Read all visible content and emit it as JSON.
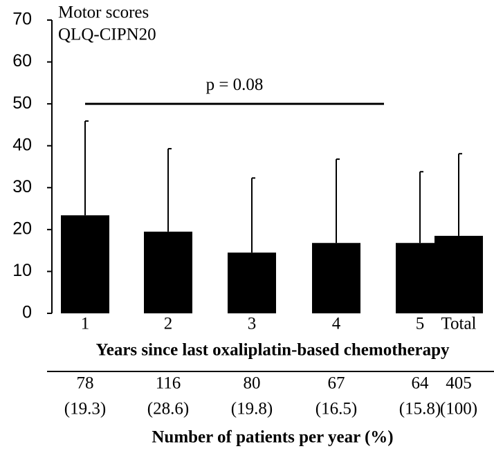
{
  "chart_data": {
    "type": "bar",
    "title": "Motor scores",
    "subtitle": "QLQ-CIPN20",
    "xlabel": "Years since last oxaliplatin-based chemotherapy",
    "categories": [
      "1",
      "2",
      "3",
      "4",
      "5",
      "Total"
    ],
    "values": [
      23.4,
      19.5,
      14.5,
      16.8,
      16.8,
      18.5
    ],
    "errors": [
      22.5,
      19.8,
      17.8,
      20.0,
      17.0,
      19.6
    ],
    "color": "#000000",
    "ylim": [
      0,
      70
    ],
    "yticks": [
      0,
      10,
      20,
      30,
      40,
      50,
      60,
      70
    ],
    "significance": {
      "label": "p = 0.08",
      "from": "1",
      "to": "5",
      "y": 50
    },
    "table": {
      "title": "Number of patients per year (%)",
      "counts": [
        78,
        116,
        80,
        67,
        64,
        405
      ],
      "percents": [
        19.3,
        28.6,
        19.8,
        16.5,
        15.8,
        100
      ],
      "percent_labels": [
        "(19.3)",
        "(28.6)",
        "(19.8)",
        "(16.5)",
        "(15.8)",
        "(100)"
      ]
    }
  }
}
